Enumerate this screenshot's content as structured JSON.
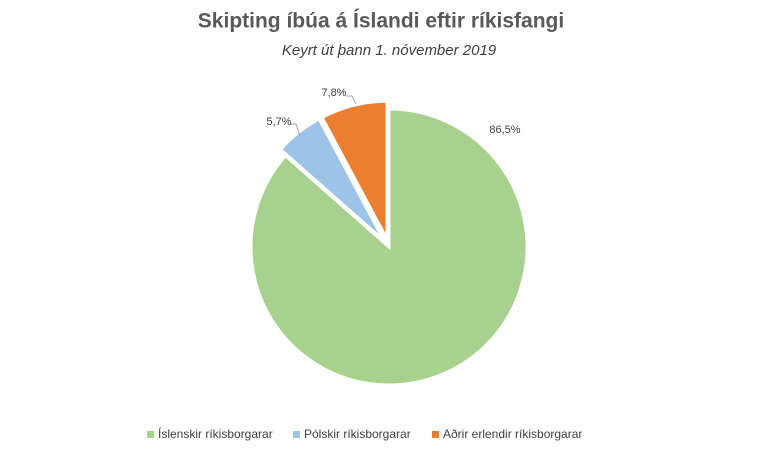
{
  "chart_data": {
    "type": "pie",
    "title": "Skipting íbúa á Íslandi eftir ríkisfangi",
    "subtitle": "Keyrt út þann 1. nóvember 2019",
    "categories": [
      "Íslenskir ríkisborgarar",
      "Pólskir ríkisborgarar",
      "Aðrir erlendir ríkisborgarar"
    ],
    "values": [
      86.5,
      5.7,
      7.8
    ],
    "value_labels": [
      "86,5%",
      "5,7%",
      "7,8%"
    ],
    "colors": [
      "#a9d18e",
      "#9dc3e6",
      "#ed7d31"
    ],
    "legend": "bottom"
  }
}
